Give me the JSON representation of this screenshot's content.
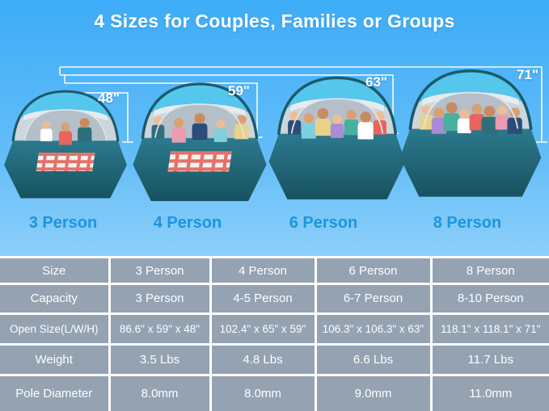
{
  "header": {
    "title": "4 Sizes for Couples, Families or Groups"
  },
  "colors": {
    "sky_top": "#3dacf7",
    "sky_bottom": "#d3ecfb",
    "title_text": "#ffffff",
    "person_label_blue": "#1d95dd",
    "measurement_line": "#ffffff",
    "table_cell_gray": "#94a2b2",
    "table_border": "#ffffff",
    "table_text": "#ffffff",
    "tent_canopy_cyan": "#55c6ec",
    "tent_frame_teal": "#1b5a6b",
    "tent_floor_teal": "#2c7a8e",
    "tent_panel_gray": "#cdd5dd"
  },
  "tents": [
    {
      "label": "3 Person",
      "height_label": "48\"",
      "people_count": 3,
      "has_blanket": true
    },
    {
      "label": "4 Person",
      "height_label": "59\"",
      "people_count": 5,
      "has_blanket": true
    },
    {
      "label": "6 Person",
      "height_label": "63\"",
      "people_count": 7,
      "has_blanket": false
    },
    {
      "label": "8 Person",
      "height_label": "71\"",
      "people_count": 8,
      "has_blanket": false
    }
  ],
  "table": {
    "rows": [
      {
        "cells": [
          "Size",
          "3 Person",
          "4 Person",
          "6 Person",
          "8 Person"
        ]
      },
      {
        "cells": [
          "Capacity",
          "3 Person",
          "4-5 Person",
          "6-7 Person",
          "8-10 Person"
        ]
      },
      {
        "cells": [
          "Open Size(L/W/H)",
          "86.6\" x 59\" x 48\"",
          "102.4\" x 65\" x 59\"",
          "106.3\" x 106.3\" x 63\"",
          "118.1\" x 118.1\" x 71\""
        ]
      },
      {
        "cells": [
          "Weight",
          "3.5 Lbs",
          "4.8 Lbs",
          "6.6 Lbs",
          "11.7 Lbs"
        ]
      },
      {
        "cells": [
          "Pole Diameter",
          "8.0mm",
          "8.0mm",
          "9.0mm",
          "11.0mm"
        ]
      }
    ]
  }
}
